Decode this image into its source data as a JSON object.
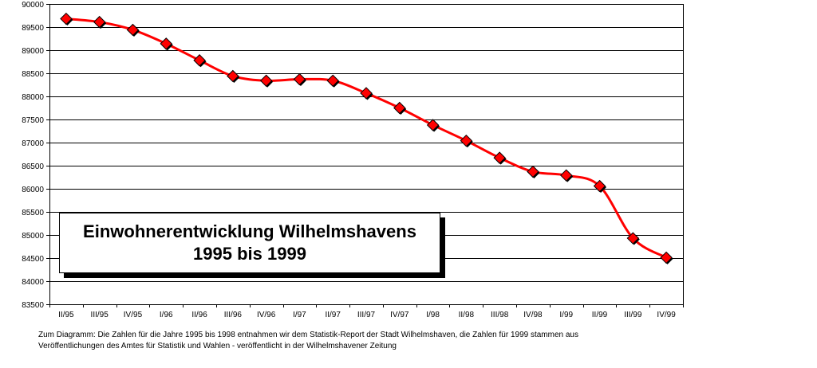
{
  "chart_data": {
    "type": "line",
    "title": [
      "Einwohnerentwicklung Wilhelmshavens",
      "1995 bis 1999"
    ],
    "categories": [
      "II/95",
      "III/95",
      "IV/95",
      "I/96",
      "II/96",
      "III/96",
      "IV/96",
      "I/97",
      "II/97",
      "III/97",
      "IV/97",
      "I/98",
      "II/98",
      "III/98",
      "IV/98",
      "I/99",
      "II/99",
      "III/99",
      "IV/99"
    ],
    "series": [
      {
        "values": [
          89680,
          89610,
          89440,
          89140,
          88780,
          88440,
          88340,
          88370,
          88340,
          88070,
          87750,
          87380,
          87040,
          86670,
          86370,
          86290,
          86060,
          84930,
          84510
        ]
      }
    ],
    "yticks": [
      83500,
      84000,
      84500,
      85000,
      85500,
      86000,
      86500,
      87000,
      87500,
      88000,
      88500,
      89000,
      89500,
      90000
    ],
    "ylim": [
      83500,
      90000
    ],
    "grid": true,
    "line_color": "#ff0000",
    "marker_color": "#ff0000",
    "marker": "diamond"
  },
  "footnote": {
    "line1": "Zum Diagramm: Die Zahlen für die Jahre 1995 bis 1998 entnahmen wir dem Statistik-Report der Stadt Wilhelmshaven, die Zahlen für 1999 stammen aus",
    "line2": "Veröffentlichungen des Amtes für Statistik und Wahlen - veröffentlicht in der Wilhelmshavener Zeitung"
  }
}
